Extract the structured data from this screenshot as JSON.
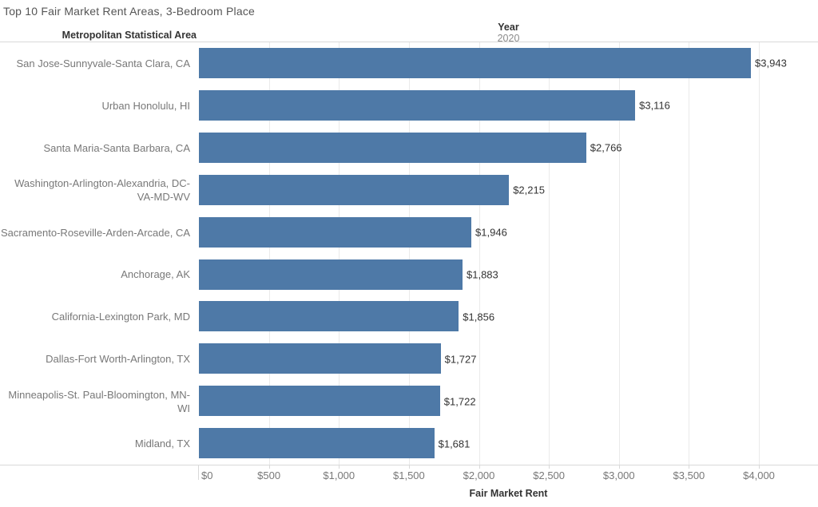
{
  "title": "Top 10 Fair Market Rent Areas, 3-Bedroom Place",
  "row_header": "Metropolitan Statistical Area",
  "column_header": {
    "label": "Year",
    "value": "2020"
  },
  "axis": {
    "label": "Fair Market Rent"
  },
  "colors": {
    "bar": "#4e79a7",
    "grid": "#eaeaea",
    "axis_line": "#d9d9d9",
    "title_text": "#555555",
    "muted_text": "#787878",
    "dark_text": "#333333"
  },
  "chart_data": {
    "type": "bar",
    "orientation": "horizontal",
    "title": "Top 10 Fair Market Rent Areas, 3-Bedroom Place",
    "xlabel": "Fair Market Rent",
    "ylabel": "Metropolitan Statistical Area",
    "legend": "Year 2020",
    "grid": true,
    "xlim": [
      0,
      4422
    ],
    "tick_values": [
      0,
      500,
      1000,
      1500,
      2000,
      2500,
      3000,
      3500,
      4000
    ],
    "tick_labels": [
      "$0",
      "$500",
      "$1,000",
      "$1,500",
      "$2,000",
      "$2,500",
      "$3,000",
      "$3,500",
      "$4,000"
    ],
    "categories": [
      "San Jose-Sunnyvale-Santa Clara, CA",
      "Urban Honolulu, HI",
      "Santa Maria-Santa Barbara, CA",
      "Washington-Arlington-Alexandria, DC-VA-MD-WV",
      "Sacramento-Roseville-Arden-Arcade, CA",
      "Anchorage, AK",
      "California-Lexington Park, MD",
      "Dallas-Fort Worth-Arlington, TX",
      "Minneapolis-St. Paul-Bloomington, MN-WI",
      "Midland, TX"
    ],
    "values": [
      3943,
      3116,
      2766,
      2215,
      1946,
      1883,
      1856,
      1727,
      1722,
      1681
    ],
    "value_labels": [
      "$3,943",
      "$3,116",
      "$2,766",
      "$2,215",
      "$1,946",
      "$1,883",
      "$1,856",
      "$1,727",
      "$1,722",
      "$1,681"
    ]
  }
}
